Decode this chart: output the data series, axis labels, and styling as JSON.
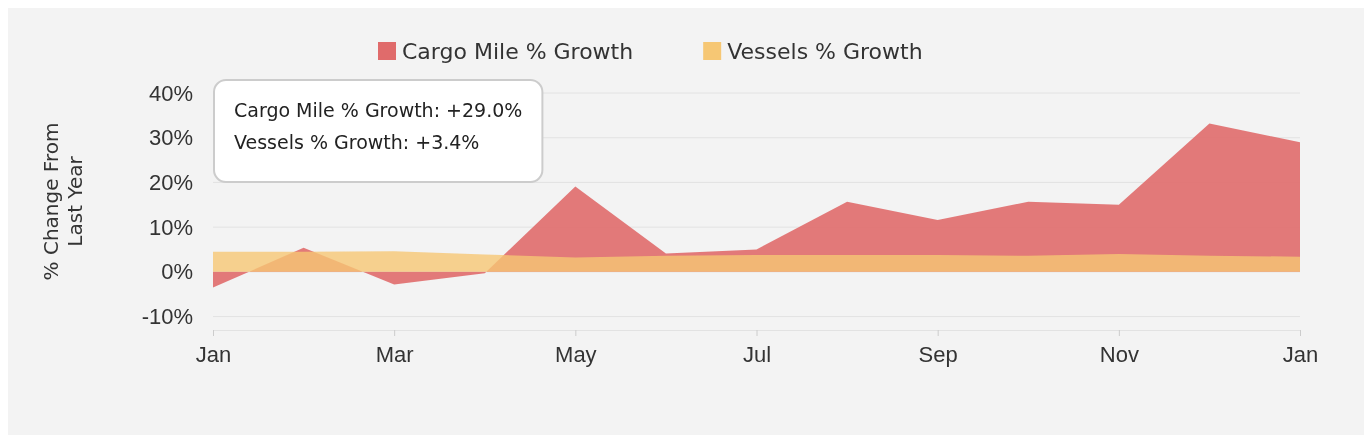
{
  "chart_data": {
    "type": "area",
    "ylabel": "% Change From Last Year",
    "categories": [
      "Jan",
      null,
      "Mar",
      null,
      "May",
      null,
      "Jul",
      null,
      "Sep",
      null,
      "Nov",
      null,
      "Jan"
    ],
    "series": [
      {
        "name": "Cargo Mile % Growth",
        "color": "#e06b6b",
        "values": [
          -3.5,
          5.4,
          -2.8,
          -0.3,
          19.1,
          4.1,
          5,
          15.7,
          11.6,
          15.7,
          15,
          33.2,
          29.0
        ]
      },
      {
        "name": "Vessels % Growth",
        "color": "#f6c774",
        "values": [
          4.5,
          4.5,
          4.6,
          3.9,
          3.2,
          3.6,
          3.8,
          3.8,
          3.8,
          3.6,
          4.0,
          3.6,
          3.4
        ]
      }
    ],
    "ylim": [
      -13,
      40
    ],
    "yticks": [
      {
        "value": -10,
        "label": "-10%"
      },
      {
        "value": 0,
        "label": "0%"
      },
      {
        "value": 10,
        "label": "10%"
      },
      {
        "value": 20,
        "label": "20%"
      },
      {
        "value": 30,
        "label": "30%"
      },
      {
        "value": 40,
        "label": "40%"
      }
    ],
    "grid": "y",
    "legend": "top",
    "annotations": [
      "Cargo Mile % Growth: +29.0%",
      "Vessels % Growth: +3.4%"
    ]
  }
}
